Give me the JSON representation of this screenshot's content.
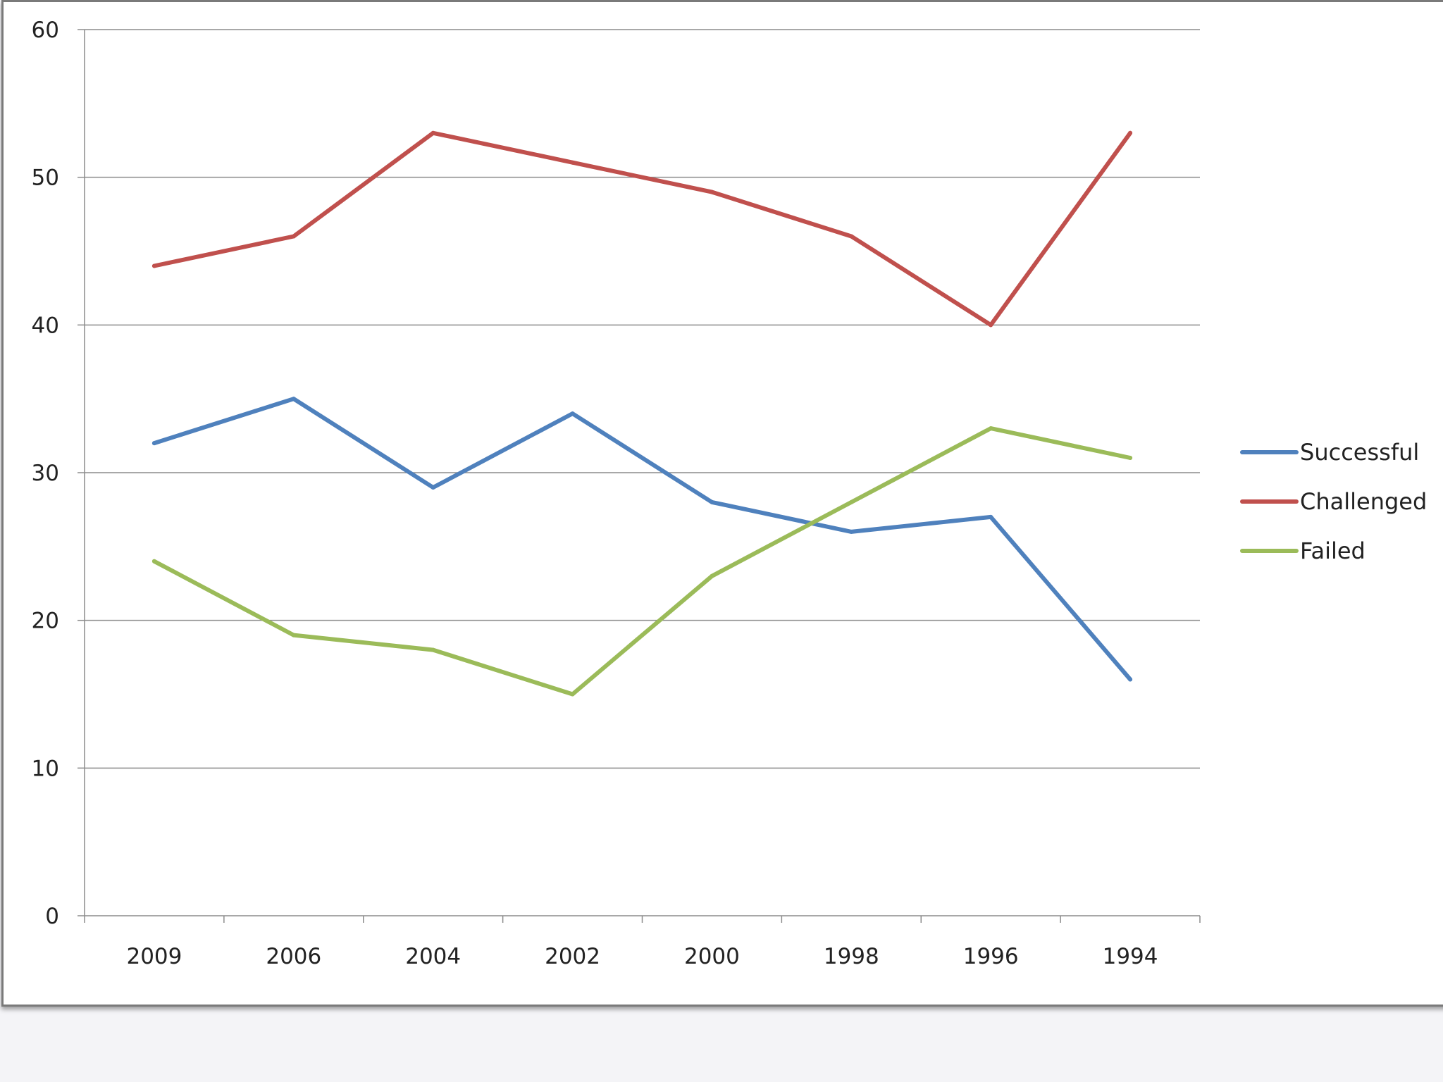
{
  "chart_data": {
    "type": "line",
    "title": "",
    "xlabel": "",
    "ylabel": "",
    "categories": [
      "2009",
      "2006",
      "2004",
      "2002",
      "2000",
      "1998",
      "1996",
      "1994"
    ],
    "ylim": [
      0,
      60
    ],
    "yticks": [
      "0",
      "10",
      "20",
      "30",
      "40",
      "50",
      "60"
    ],
    "grid": true,
    "legend_position": "right",
    "series": [
      {
        "name": "Successful",
        "color": "#4f81bd",
        "values": [
          32,
          35,
          29,
          34,
          28,
          26,
          27,
          16
        ]
      },
      {
        "name": "Challenged",
        "color": "#c0504d",
        "values": [
          44,
          46,
          53,
          51,
          49,
          46,
          40,
          53
        ]
      },
      {
        "name": "Failed",
        "color": "#9bbb59",
        "values": [
          24,
          19,
          18,
          15,
          23,
          28,
          33,
          31
        ]
      }
    ]
  }
}
